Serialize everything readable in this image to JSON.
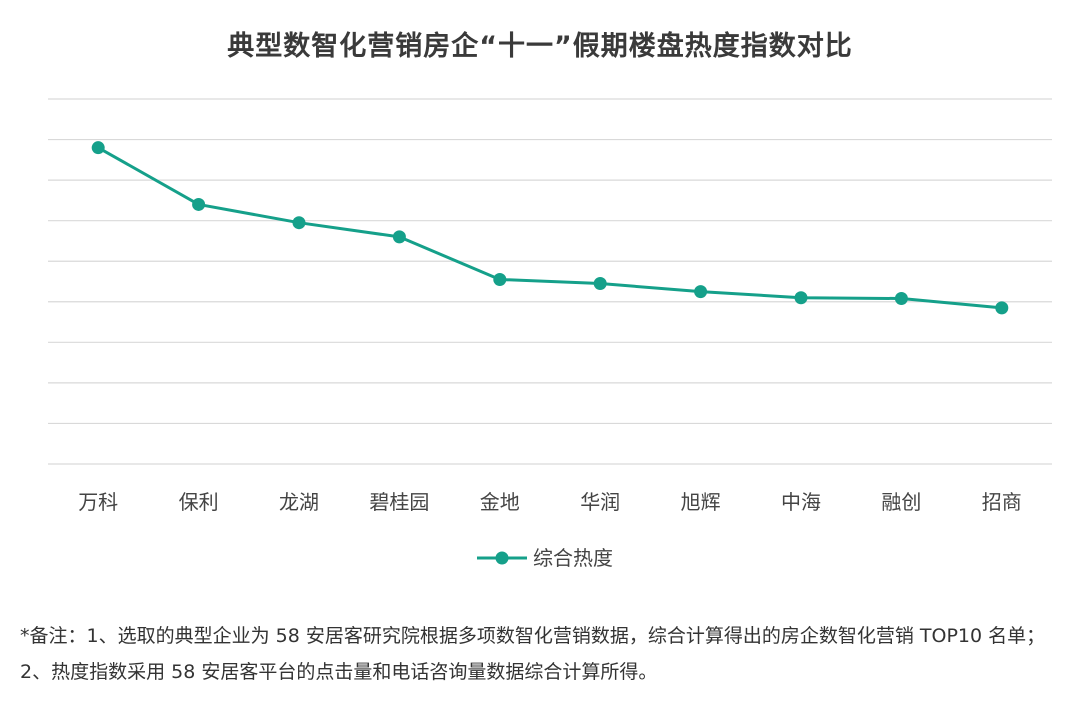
{
  "chart_data": {
    "type": "line",
    "title": "典型数智化营销房企“十一”假期楼盘热度指数对比",
    "categories": [
      "万科",
      "保利",
      "龙湖",
      "碧桂园",
      "金地",
      "华润",
      "旭辉",
      "中海",
      "融创",
      "招商"
    ],
    "series": [
      {
        "name": "综合热度",
        "color": "#15a08a",
        "values": [
          7.8,
          6.4,
          5.95,
          5.6,
          4.55,
          4.45,
          4.25,
          4.1,
          4.08,
          3.85
        ]
      }
    ],
    "ylim": [
      0,
      9
    ],
    "y_gridlines": 10,
    "grid": true,
    "y_tick_labels_shown": false,
    "legend": "bottom-center"
  },
  "note": {
    "text": "*备注：1、选取的典型企业为 58 安居客研究院根据多项数智化营销数据，综合计算得出的房企数智化营销 TOP10 名单；2、热度指数采用 58 安居客平台的点击量和电话咨询量数据综合计算所得。"
  },
  "colors": {
    "gridline": "#d9d9d9",
    "series": "#15a08a"
  }
}
